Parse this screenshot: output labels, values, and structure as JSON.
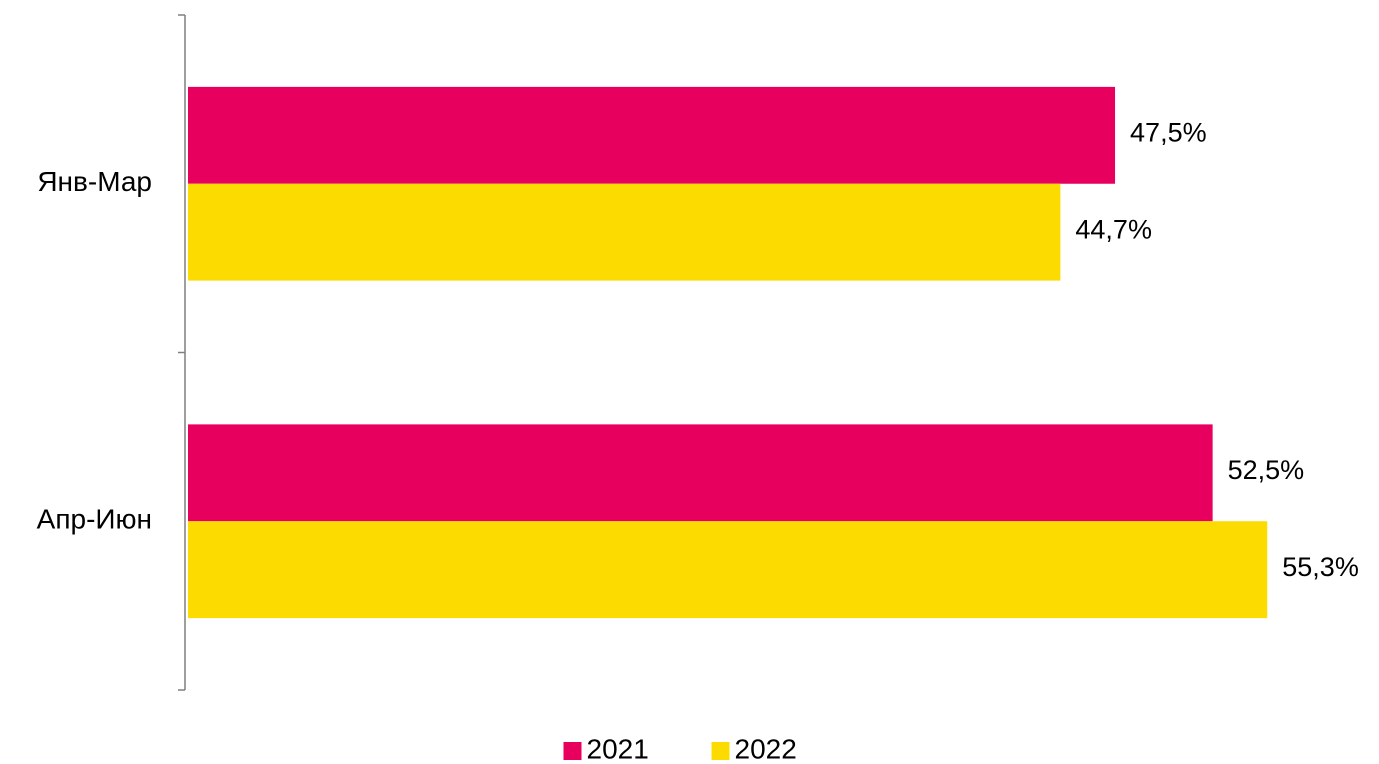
{
  "chart_data": {
    "type": "hbar",
    "categories": [
      "Янв-Мар",
      "Апр-Июн"
    ],
    "series": [
      {
        "name": "2021",
        "color": "#e8005f",
        "values": [
          47.5,
          52.5
        ],
        "value_labels": [
          "47,5%",
          "52,5%"
        ]
      },
      {
        "name": "2022",
        "color": "#fcdc00",
        "values": [
          44.7,
          55.3
        ],
        "value_labels": [
          "44,7%",
          "55,3%"
        ]
      }
    ],
    "xlim": [
      0,
      60
    ],
    "legend": "bottom"
  }
}
